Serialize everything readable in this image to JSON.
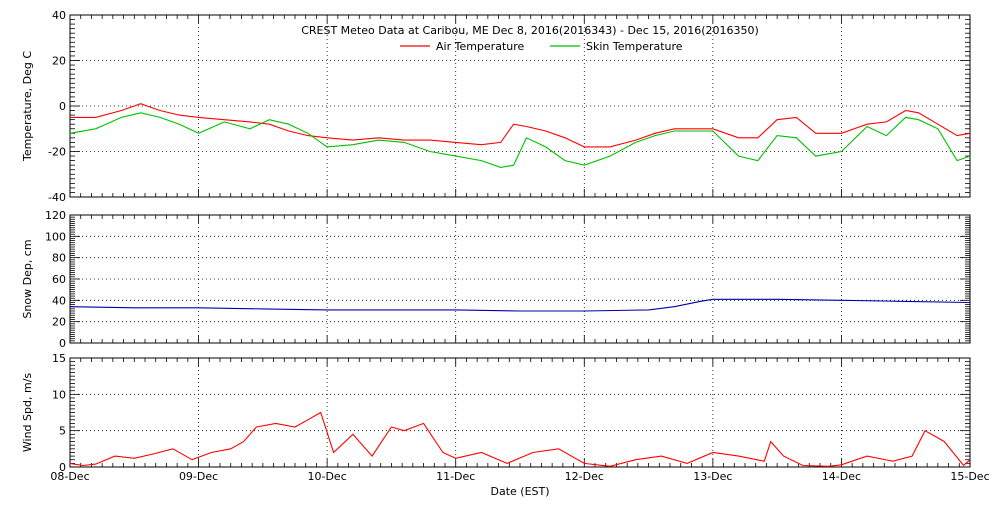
{
  "title": "CREST Meteo Data at Caribou, ME   Dec  8, 2016(2016343) - Dec 15, 2016(2016350)",
  "xlabel": "Date (EST)",
  "colors": {
    "air": "#ff0000",
    "skin": "#00c000",
    "snow": "#0000aa",
    "wind": "#ff0000",
    "axis": "#000000"
  },
  "chart_data": [
    {
      "type": "line",
      "panel": "temperature",
      "title": "CREST Meteo Data at Caribou, ME   Dec  8, 2016(2016343) - Dec 15, 2016(2016350)",
      "ylabel": "Temperature, Deg C",
      "xlabel": "",
      "x_units": "days since Dec 8 00:00 EST",
      "xlim": [
        0,
        7
      ],
      "ylim": [
        -40,
        40
      ],
      "yticks": [
        -40,
        -20,
        0,
        20,
        40
      ],
      "xtick_labels": [
        "08-Dec",
        "09-Dec",
        "10-Dec",
        "11-Dec",
        "12-Dec",
        "13-Dec",
        "14-Dec",
        "15-Dec"
      ],
      "grid": "dotted",
      "legend": "top-center",
      "x": [
        0,
        0.2,
        0.4,
        0.55,
        0.7,
        0.85,
        1.0,
        1.2,
        1.4,
        1.55,
        1.7,
        1.85,
        2.0,
        2.2,
        2.4,
        2.6,
        2.8,
        3.0,
        3.2,
        3.35,
        3.45,
        3.55,
        3.7,
        3.85,
        4.0,
        4.2,
        4.4,
        4.55,
        4.7,
        4.85,
        5.0,
        5.2,
        5.35,
        5.5,
        5.65,
        5.8,
        6.0,
        6.2,
        6.35,
        6.5,
        6.6,
        6.75,
        6.9,
        7.0
      ],
      "series": [
        {
          "name": "Air Temperature",
          "color": "#ff0000",
          "values": [
            -5,
            -5,
            -2,
            1,
            -2,
            -4,
            -5,
            -6,
            -7,
            -8,
            -11,
            -13,
            -14,
            -15,
            -14,
            -15,
            -15,
            -16,
            -17,
            -16,
            -8,
            -9,
            -11,
            -14,
            -18,
            -18,
            -15,
            -12,
            -10,
            -10,
            -10,
            -14,
            -14,
            -6,
            -5,
            -12,
            -12,
            -8,
            -7,
            -2,
            -3,
            -8,
            -13,
            -12
          ]
        },
        {
          "name": "Skin Temperature",
          "color": "#00c000",
          "values": [
            -12,
            -10,
            -5,
            -3,
            -5,
            -8,
            -12,
            -7,
            -10,
            -6,
            -8,
            -12,
            -18,
            -17,
            -15,
            -16,
            -20,
            -22,
            -24,
            -27,
            -26,
            -14,
            -18,
            -24,
            -26,
            -22,
            -16,
            -13,
            -11,
            -11,
            -11,
            -22,
            -24,
            -13,
            -14,
            -22,
            -20,
            -9,
            -13,
            -5,
            -6,
            -10,
            -24,
            -22
          ]
        }
      ]
    },
    {
      "type": "line",
      "panel": "snow_depth",
      "ylabel": "Snow Dep, cm",
      "xlim": [
        0,
        7
      ],
      "ylim": [
        0,
        120
      ],
      "yticks": [
        0,
        20,
        40,
        60,
        80,
        100,
        120
      ],
      "grid": "dotted",
      "x": [
        0,
        0.5,
        1.0,
        1.5,
        2.0,
        2.5,
        3.0,
        3.5,
        4.0,
        4.5,
        4.7,
        4.9,
        5.0,
        5.5,
        6.0,
        6.5,
        7.0
      ],
      "series": [
        {
          "name": "",
          "color": "#0000aa",
          "values": [
            34,
            33,
            33,
            32,
            31,
            31,
            31,
            30,
            30,
            31,
            34,
            39,
            41,
            41,
            40,
            39,
            38
          ]
        }
      ]
    },
    {
      "type": "line",
      "panel": "wind_speed",
      "ylabel": "Wind Spd, m/s",
      "xlabel": "Date (EST)",
      "xlim": [
        0,
        7
      ],
      "ylim": [
        0,
        15
      ],
      "yticks": [
        0,
        5,
        10,
        15
      ],
      "xtick_labels": [
        "08-Dec",
        "09-Dec",
        "10-Dec",
        "11-Dec",
        "12-Dec",
        "13-Dec",
        "14-Dec",
        "15-Dec"
      ],
      "grid": "dotted",
      "x": [
        0,
        0.1,
        0.2,
        0.35,
        0.5,
        0.65,
        0.8,
        0.95,
        1.1,
        1.25,
        1.35,
        1.45,
        1.6,
        1.75,
        1.85,
        1.95,
        2.05,
        2.2,
        2.35,
        2.5,
        2.6,
        2.75,
        2.9,
        3.0,
        3.2,
        3.4,
        3.6,
        3.8,
        4.0,
        4.2,
        4.4,
        4.6,
        4.8,
        5.0,
        5.2,
        5.4,
        5.45,
        5.55,
        5.7,
        5.9,
        6.0,
        6.2,
        6.4,
        6.55,
        6.65,
        6.75,
        6.8,
        6.95,
        7.0
      ],
      "series": [
        {
          "name": "",
          "color": "#ff0000",
          "values": [
            0.5,
            0.2,
            0.4,
            1.5,
            1.2,
            1.8,
            2.5,
            1.0,
            2.0,
            2.5,
            3.5,
            5.5,
            6.0,
            5.5,
            6.5,
            7.5,
            2.0,
            4.5,
            1.5,
            5.5,
            5.0,
            6.0,
            2.0,
            1.2,
            2.0,
            0.5,
            2.0,
            2.5,
            0.5,
            0.1,
            1.0,
            1.5,
            0.5,
            2.0,
            1.5,
            0.8,
            3.5,
            1.5,
            0.2,
            0.1,
            0.3,
            1.5,
            0.8,
            1.5,
            5.0,
            4.0,
            3.5,
            0.2,
            1.0
          ]
        }
      ]
    }
  ]
}
